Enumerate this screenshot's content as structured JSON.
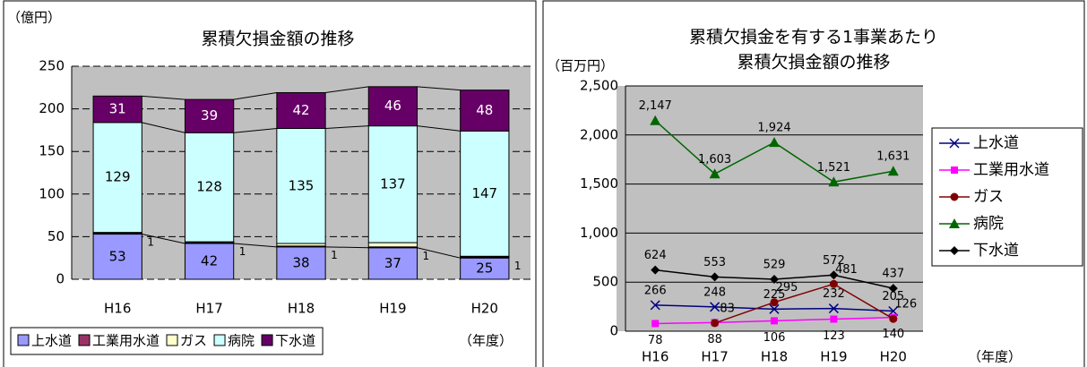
{
  "chart_data": [
    {
      "type": "bar",
      "stacked": true,
      "title": "累積欠損金額の推移",
      "y_label": "（億円）",
      "x_label": "（年度）",
      "categories": [
        "H16",
        "H17",
        "H18",
        "H19",
        "H20"
      ],
      "series": [
        {
          "name": "上水道",
          "color": "#9999ff",
          "values": [
            53,
            42,
            38,
            37,
            25
          ]
        },
        {
          "name": "工業用水道",
          "color": "#993366",
          "values": [
            1,
            1,
            1,
            1,
            1
          ]
        },
        {
          "name": "ガス",
          "color": "#ffffcc",
          "values": [
            1,
            1,
            3,
            5,
            1
          ]
        },
        {
          "name": "病院",
          "color": "#ccffff",
          "values": [
            129,
            128,
            135,
            137,
            147
          ]
        },
        {
          "name": "下水道",
          "color": "#660066",
          "values": [
            31,
            39,
            42,
            46,
            48
          ]
        }
      ],
      "ylim": [
        0,
        250
      ],
      "yticks": [
        0,
        50,
        100,
        150,
        200,
        250
      ],
      "grid": true,
      "legend": "bottom"
    },
    {
      "type": "line",
      "title": [
        "累積欠損金を有する1事業あたり",
        "累積欠損金額の推移"
      ],
      "y_label": "（百万円）",
      "x_label": "（年度）",
      "categories": [
        "H16",
        "H17",
        "H18",
        "H19",
        "H20"
      ],
      "series": [
        {
          "name": "上水道",
          "color": "#000080",
          "marker": "x",
          "values": [
            266,
            248,
            225,
            232,
            205
          ]
        },
        {
          "name": "工業用水道",
          "color": "#ff00ff",
          "marker": "square",
          "values": [
            78,
            88,
            106,
            123,
            140
          ]
        },
        {
          "name": "ガス",
          "color": "#800000",
          "marker": "circle",
          "values": [
            null,
            83,
            295,
            481,
            126
          ]
        },
        {
          "name": "病院",
          "color": "#006600",
          "marker": "triangle",
          "values": [
            2147,
            1603,
            1924,
            1521,
            1631
          ],
          "value_labels": [
            "2,147",
            "1,603",
            "1,924",
            "1,521",
            "1,631"
          ]
        },
        {
          "name": "下水道",
          "color": "#000000",
          "marker": "diamond",
          "values": [
            624,
            553,
            529,
            572,
            437
          ]
        }
      ],
      "ylim": [
        0,
        2500
      ],
      "yticks": [
        0,
        {
          "value": 500,
          "label": "500"
        },
        {
          "value": 1000,
          "label": "1,000"
        },
        {
          "value": 1500,
          "label": "1,500"
        },
        {
          "value": 2000,
          "label": "2,000"
        },
        {
          "value": 2500,
          "label": "2,500"
        }
      ],
      "grid": true,
      "legend": "right"
    }
  ]
}
